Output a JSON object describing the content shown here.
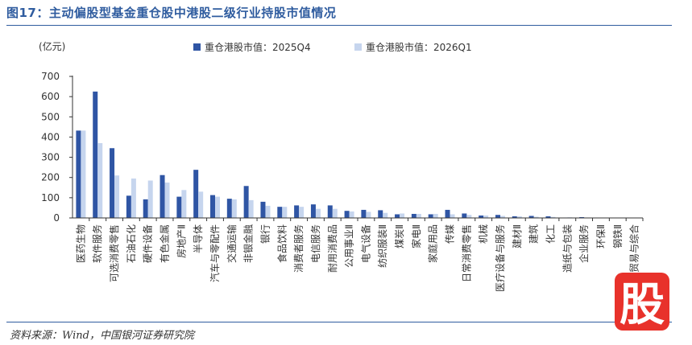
{
  "title": "图17：主动偏股型基金重仓股中港股二级行业持股市值情况",
  "source": "资料来源：Wind，中国银河证券研究院",
  "badge_text": "股",
  "colors": {
    "series1": "#2f55a4",
    "series2": "#c6d5ee",
    "title": "#2f5c9f",
    "badge": "#e8322b"
  },
  "chart_data": {
    "type": "bar",
    "ylabel": "(亿元)",
    "ylim": [
      0,
      700
    ],
    "yticks": [
      0,
      100,
      200,
      300,
      400,
      500,
      600,
      700
    ],
    "legend_position": "top",
    "categories": [
      "医药生物",
      "软件服务",
      "可选消费零售",
      "石油石化",
      "硬件设备",
      "有色金属",
      "房地产Ⅱ",
      "半导体",
      "汽车与零配件",
      "交通运输",
      "非银金融",
      "银行",
      "食品饮料",
      "消费者服务",
      "电信服务",
      "耐用消费品",
      "公用事业Ⅱ",
      "电气设备",
      "纺织服装Ⅱ",
      "煤炭Ⅱ",
      "家电Ⅱ",
      "家庭用品",
      "传媒",
      "日常消费零售",
      "机械",
      "医疗设备与服务",
      "建材Ⅱ",
      "建筑",
      "化工",
      "造纸与包装",
      "企业服务",
      "环保Ⅱ",
      "钢铁Ⅱ",
      "贸易与综合"
    ],
    "series": [
      {
        "name": "重仓港股市值：2025Q4",
        "values": [
          432,
          625,
          345,
          110,
          92,
          212,
          105,
          238,
          113,
          95,
          158,
          80,
          55,
          62,
          67,
          62,
          35,
          40,
          38,
          18,
          20,
          18,
          40,
          22,
          12,
          15,
          8,
          10,
          8,
          2,
          4,
          1,
          1,
          1
        ]
      },
      {
        "name": "重仓港股市值：2026Q1",
        "values": [
          432,
          370,
          210,
          195,
          185,
          175,
          138,
          130,
          105,
          92,
          88,
          60,
          55,
          55,
          45,
          45,
          32,
          30,
          25,
          22,
          20,
          20,
          18,
          15,
          12,
          10,
          8,
          6,
          5,
          3,
          2,
          1,
          1,
          1
        ]
      }
    ]
  }
}
